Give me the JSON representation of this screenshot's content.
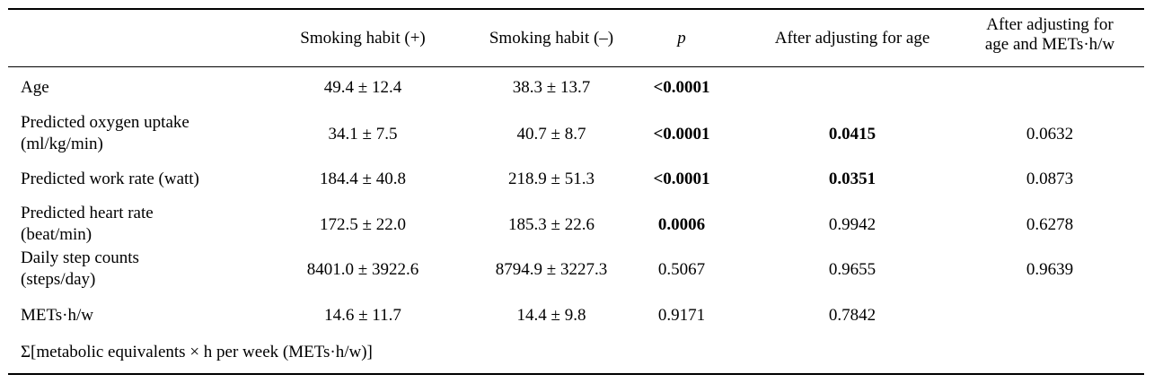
{
  "headers": {
    "smoking_plus": "Smoking habit (+)",
    "smoking_minus": "Smoking habit (–)",
    "p": "p",
    "after_age": "After adjusting for age",
    "after_age_mets_line1": "After adjusting for",
    "after_age_mets_line2": "age and METs·h/w"
  },
  "rows": [
    {
      "label_line1": "Age",
      "label_line2": "",
      "plus": "49.4 ± 12.4",
      "minus": "38.3 ± 13.7",
      "p": "<0.0001",
      "after_age": "",
      "after_age_mets": ""
    },
    {
      "label_line1": "Predicted oxygen uptake",
      "label_line2": "(ml/kg/min)",
      "plus": "34.1 ± 7.5",
      "minus": "40.7 ± 8.7",
      "p": "<0.0001",
      "after_age": "0.0415",
      "after_age_mets": "0.0632"
    },
    {
      "label_line1": "Predicted work rate (watt)",
      "label_line2": "",
      "plus": "184.4 ± 40.8",
      "minus": "218.9 ± 51.3",
      "p": "<0.0001",
      "after_age": "0.0351",
      "after_age_mets": "0.0873"
    },
    {
      "label_line1": "Predicted heart rate",
      "label_line2": "(beat/min)",
      "plus": "172.5 ± 22.0",
      "minus": "185.3 ± 22.6",
      "p": "0.0006",
      "after_age": "0.9942",
      "after_age_mets": "0.6278"
    },
    {
      "label_line1": "Daily step counts",
      "label_line2": "(steps/day)",
      "plus": "8401.0 ± 3922.6",
      "minus": "8794.9 ± 3227.3",
      "p": "0.5067",
      "after_age": "0.9655",
      "after_age_mets": "0.9639"
    },
    {
      "label_line1": "METs·h/w",
      "label_line2": "",
      "plus": "14.6 ± 11.7",
      "minus": "14.4 ± 9.8",
      "p": "0.9171",
      "after_age": "0.7842",
      "after_age_mets": ""
    }
  ],
  "footnote": "Σ[metabolic equivalents × h per week (METs·h/w)]"
}
